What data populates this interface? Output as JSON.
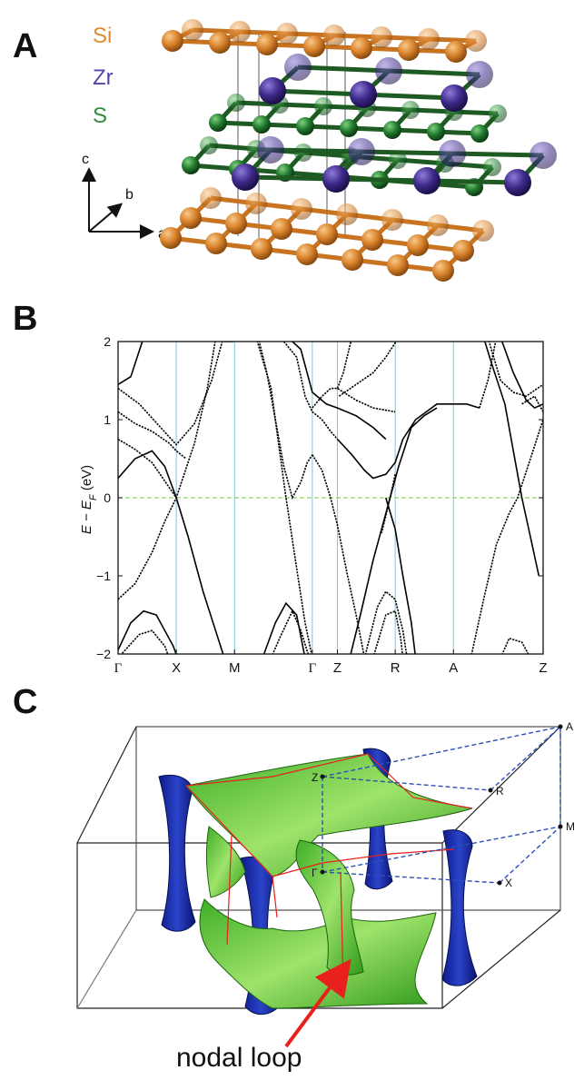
{
  "panels": {
    "a": {
      "letter": "A",
      "legend": [
        {
          "label": "Si",
          "color": "#e08a2c"
        },
        {
          "label": "Zr",
          "color": "#5a3fa8"
        },
        {
          "label": "S",
          "color": "#2f8a3a"
        }
      ],
      "axes": {
        "c": "c",
        "b": "b",
        "a": "a"
      }
    },
    "b": {
      "letter": "B",
      "ylabel_main": "E − E",
      "ylabel_sub": "F",
      "ylabel_unit": " (eV)"
    },
    "c": {
      "letter": "C",
      "bz_labels": {
        "A": "A",
        "Z": "Z",
        "R": "R",
        "M": "M",
        "Gamma": "Γ",
        "X": "X"
      },
      "annotation": "nodal loop"
    }
  },
  "chart_data": {
    "type": "line",
    "title": "",
    "xlabel": "",
    "ylabel": "E − E_F (eV)",
    "ylim": [
      -2,
      2
    ],
    "yticks": [
      -2,
      -1,
      0,
      1,
      2
    ],
    "xticks": [
      {
        "label": "Γ",
        "pos": 0.0
      },
      {
        "label": "X",
        "pos": 0.137
      },
      {
        "label": "M",
        "pos": 0.274
      },
      {
        "label": "Γ",
        "pos": 0.457
      },
      {
        "label": "Z",
        "pos": 0.516
      },
      {
        "label": "R",
        "pos": 0.652
      },
      {
        "label": "A",
        "pos": 0.789
      },
      {
        "label": "Z",
        "pos": 1.0
      }
    ],
    "fermi_level": 0,
    "grid": false,
    "colors": {
      "band": "#000000",
      "kline": "#7ec8e3",
      "fermi": "#8fcf6f"
    }
  }
}
